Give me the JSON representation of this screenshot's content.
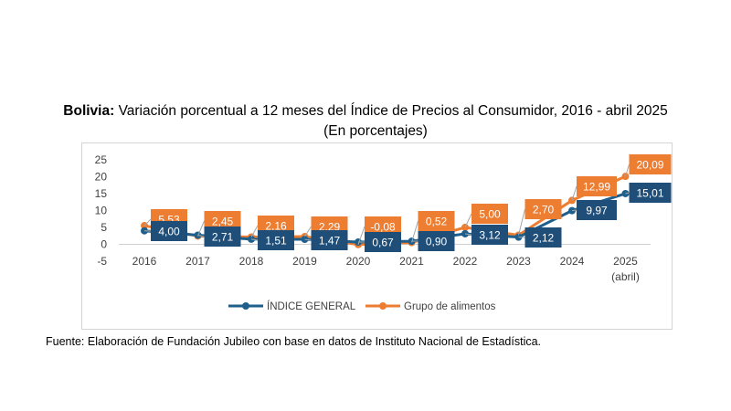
{
  "header": {
    "title_bold": "Bolivia:",
    "title_rest": " Variación porcentual a 12 meses del Índice de Precios al Consumidor, 2016 - abril 2025",
    "subtitle": "(En porcentajes)"
  },
  "source": "Fuente: Elaboración de Fundación Jubileo con base en datos de Instituto Nacional de Estadística.",
  "colors": {
    "general": "#1f5f8b",
    "alimentos": "#ed7d31",
    "label_general_bg": "#1f4e79",
    "label_alimentos_bg": "#ed7d31"
  },
  "chart_data": {
    "type": "line",
    "title": "Bolivia: Variación porcentual a 12 meses del Índice de Precios al Consumidor, 2016 - abril 2025",
    "subtitle": "(En porcentajes)",
    "categories": [
      "2016",
      "2017",
      "2018",
      "2019",
      "2020",
      "2021",
      "2022",
      "2023",
      "2024",
      "2025"
    ],
    "category_sublabels": [
      "",
      "",
      "",
      "",
      "",
      "",
      "",
      "",
      "",
      "(abril)"
    ],
    "ylim": [
      -5,
      25
    ],
    "yticks": [
      -5,
      0,
      5,
      10,
      15,
      20,
      25
    ],
    "ytick_labels": [
      "-5",
      "0",
      "5",
      "10",
      "15",
      "20",
      "25"
    ],
    "legend_position": "bottom",
    "series": [
      {
        "name": "ÍNDICE GENERAL",
        "values": [
          4.0,
          2.71,
          1.51,
          1.47,
          0.67,
          0.9,
          3.12,
          2.12,
          9.97,
          15.01
        ],
        "labels": [
          "4,00",
          "2,71",
          "1,51",
          "1,47",
          "0,67",
          "0,90",
          "3,12",
          "2,12",
          "9,97",
          "15,01"
        ]
      },
      {
        "name": "Grupo de alimentos",
        "values": [
          5.53,
          2.45,
          2.16,
          2.29,
          -0.08,
          0.52,
          5.0,
          2.7,
          12.99,
          20.09
        ],
        "labels": [
          "5,53",
          "2,45",
          "2,16",
          "2,29",
          "-0,08",
          "0,52",
          "5,00",
          "2,70",
          "12,99",
          "20,09"
        ]
      }
    ]
  }
}
